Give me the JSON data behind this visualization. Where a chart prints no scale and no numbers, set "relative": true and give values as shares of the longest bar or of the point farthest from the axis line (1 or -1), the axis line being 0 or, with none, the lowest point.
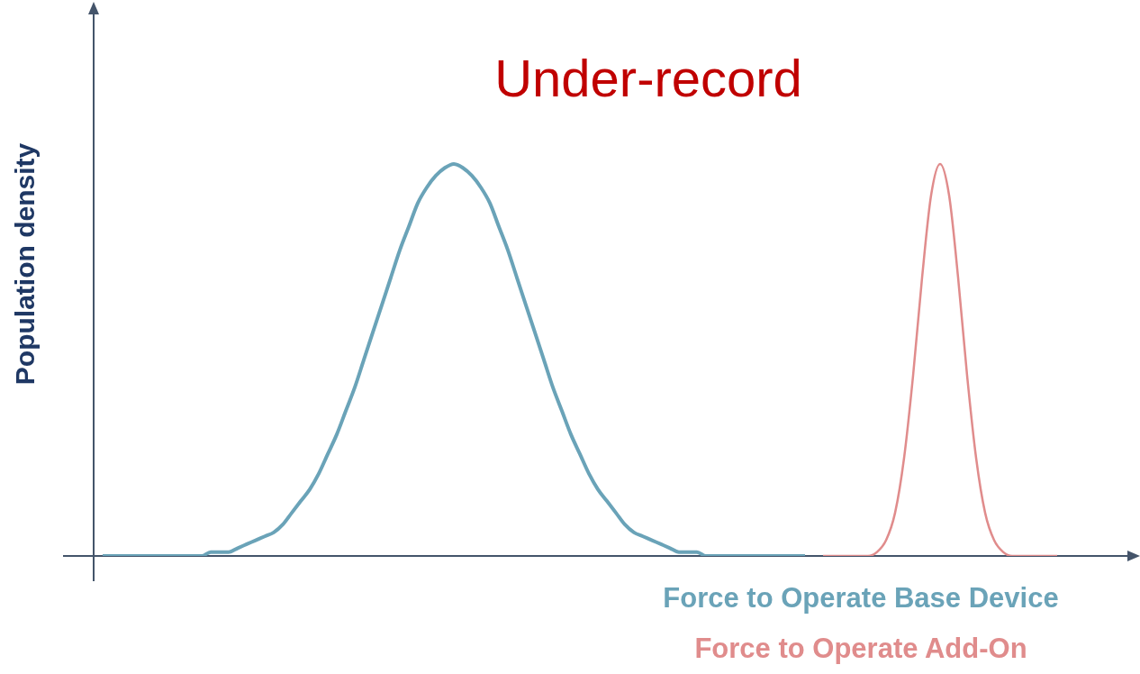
{
  "chart_data": {
    "type": "line",
    "title": "Under-record",
    "ylabel": "Population density",
    "relative": true,
    "legend": "bottom right",
    "marker": "none",
    "line_style": "solid",
    "categories": [
      null,
      null,
      null,
      null,
      null,
      null,
      null,
      null,
      null,
      null,
      null,
      null,
      null,
      null,
      null,
      null,
      null,
      null,
      null,
      null,
      null,
      null,
      null,
      null,
      null,
      null,
      null,
      null,
      null,
      null,
      null,
      null,
      null,
      null,
      null,
      null,
      null,
      null,
      null,
      null,
      null,
      null,
      null,
      null,
      null,
      null,
      null,
      null,
      null,
      null,
      null,
      null,
      null,
      null,
      null,
      null,
      null,
      null,
      null,
      null,
      null,
      null,
      null,
      null,
      null,
      null,
      null,
      null,
      null,
      null,
      null,
      null,
      null,
      null,
      null,
      null,
      null,
      null,
      null,
      null,
      null,
      null,
      null,
      null,
      null,
      null,
      null,
      null,
      null,
      null,
      null,
      null,
      null,
      null,
      null,
      null,
      null,
      null,
      null,
      null,
      null,
      null,
      null,
      null,
      null,
      null,
      null,
      null,
      null,
      null,
      null,
      null,
      null,
      null,
      null,
      null
    ],
    "series": [
      {
        "name": "Force to Operate Base Device",
        "color": "#6aa3b8",
        "values": [
          null,
          0,
          0,
          0,
          0,
          0,
          0,
          0,
          0,
          0,
          0,
          0,
          0,
          0.01,
          0.01,
          0.01,
          0.02,
          0.03,
          0.04,
          0.05,
          0.06,
          0.08,
          0.11,
          0.14,
          0.17,
          0.21,
          0.26,
          0.31,
          0.37,
          0.43,
          0.5,
          0.57,
          0.64,
          0.71,
          0.78,
          0.84,
          0.9,
          0.94,
          0.97,
          0.99,
          1,
          0.99,
          0.97,
          0.94,
          0.9,
          0.84,
          0.78,
          0.71,
          0.64,
          0.57,
          0.5,
          0.43,
          0.37,
          0.31,
          0.26,
          0.21,
          0.17,
          0.14,
          0.11,
          0.08,
          0.06,
          0.05,
          0.04,
          0.03,
          0.02,
          0.01,
          0.01,
          0.01,
          0,
          0,
          0,
          0,
          0,
          0,
          0,
          0,
          0,
          0,
          0,
          0,
          null,
          null,
          null,
          null,
          null,
          null,
          null,
          null,
          null,
          null,
          null,
          null,
          null,
          null,
          null,
          null,
          null,
          null,
          null,
          null,
          null,
          null,
          null,
          null,
          null,
          null,
          null,
          null,
          null,
          null,
          null,
          null,
          null,
          null,
          null,
          null
        ]
      },
      {
        "name": "Force to Operate Add-On",
        "color": "#e08c8c",
        "values": [
          null,
          null,
          null,
          null,
          null,
          null,
          null,
          null,
          null,
          null,
          null,
          null,
          null,
          null,
          null,
          null,
          null,
          null,
          null,
          null,
          null,
          null,
          null,
          null,
          null,
          null,
          null,
          null,
          null,
          null,
          null,
          null,
          null,
          null,
          null,
          null,
          null,
          null,
          null,
          null,
          null,
          null,
          null,
          null,
          null,
          null,
          null,
          null,
          null,
          null,
          null,
          null,
          null,
          null,
          null,
          null,
          null,
          null,
          null,
          null,
          null,
          null,
          null,
          null,
          null,
          null,
          null,
          null,
          null,
          null,
          null,
          null,
          null,
          null,
          null,
          null,
          null,
          null,
          null,
          null,
          null,
          0,
          0,
          0,
          0,
          0,
          0,
          0.01,
          0.04,
          0.11,
          0.25,
          0.46,
          0.71,
          0.92,
          1,
          0.92,
          0.71,
          0.46,
          0.25,
          0.11,
          0.04,
          0.01,
          0,
          0,
          0,
          0,
          0,
          0,
          null,
          null,
          null,
          null,
          null,
          null,
          null,
          null
        ]
      }
    ]
  }
}
